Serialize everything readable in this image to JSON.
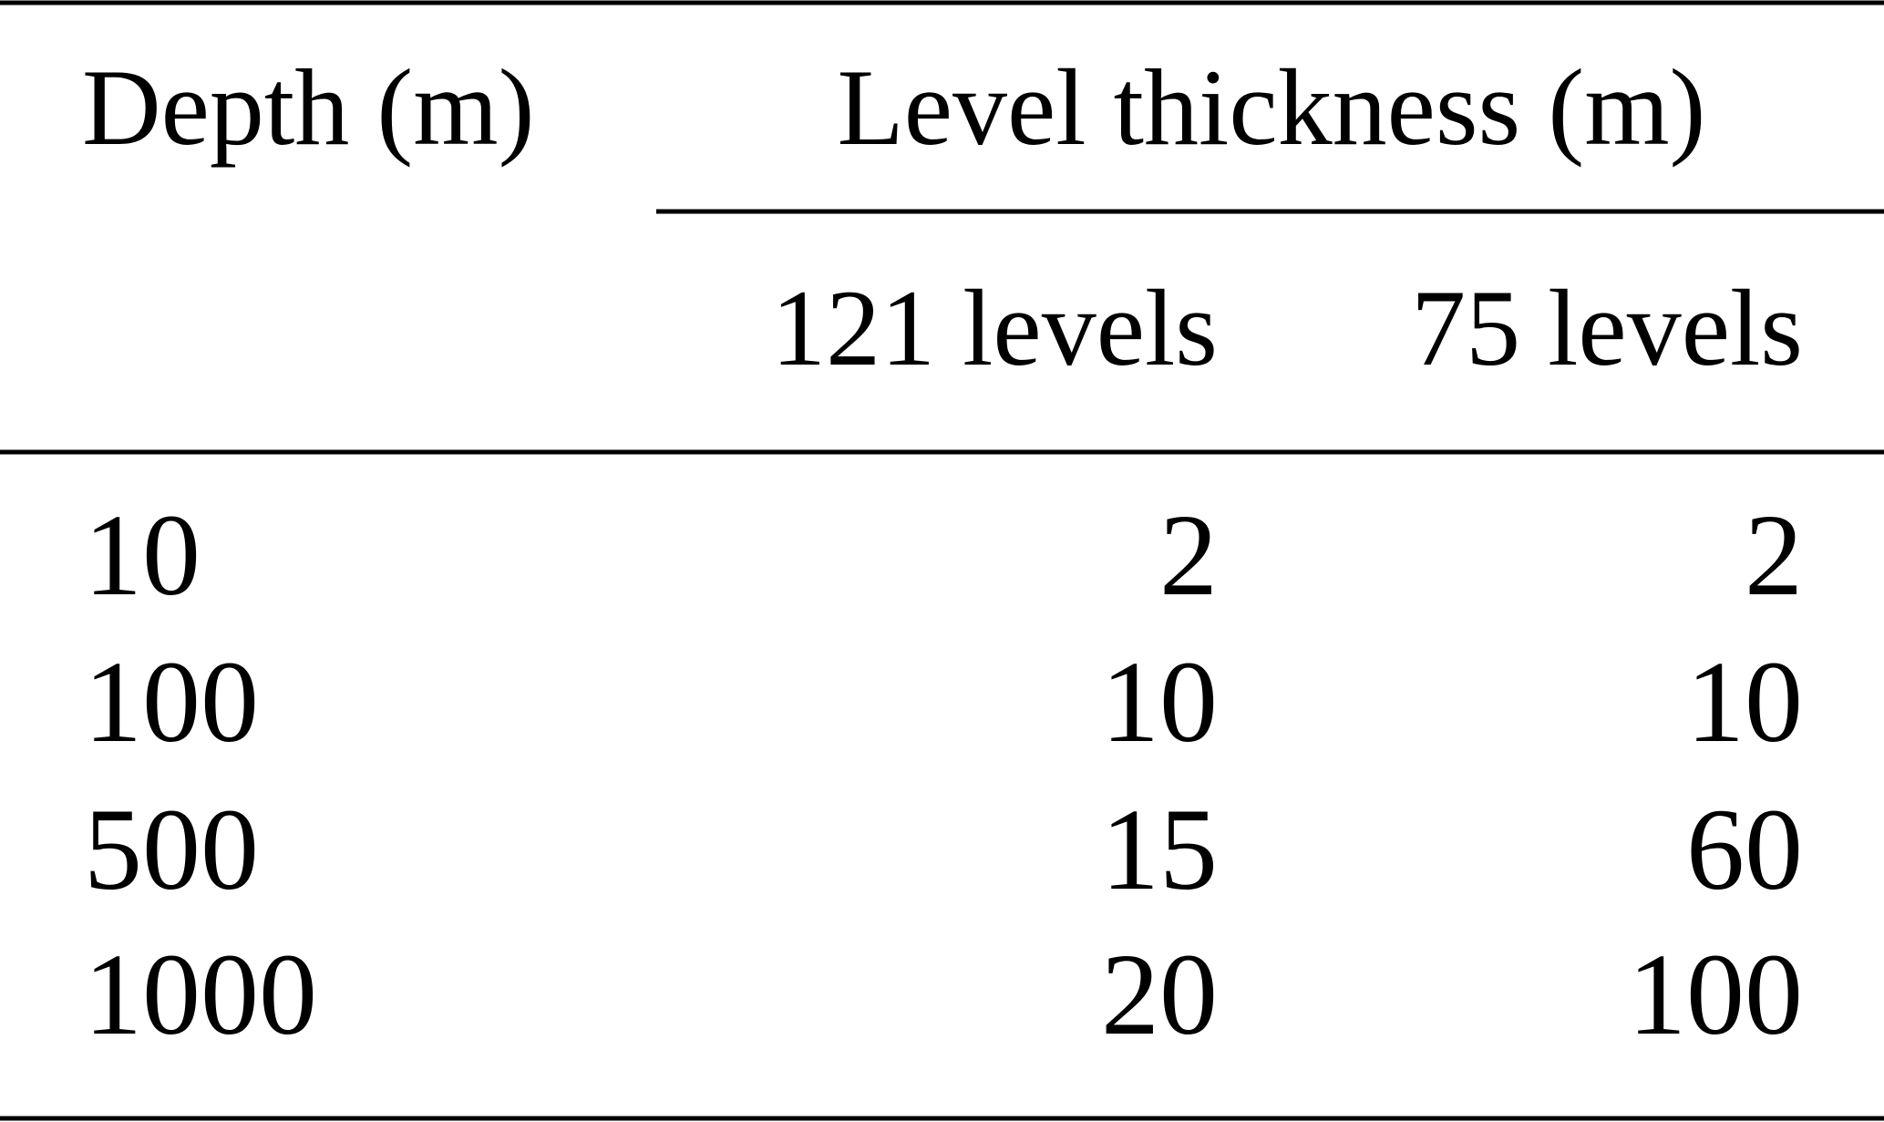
{
  "table": {
    "header": {
      "depth": "Depth (m)",
      "group": "Level thickness (m)",
      "columns": [
        "121 levels",
        "75 levels"
      ]
    },
    "rows": [
      [
        10,
        2,
        2
      ],
      [
        100,
        10,
        10
      ],
      [
        500,
        15,
        60
      ],
      [
        1000,
        20,
        100
      ]
    ]
  }
}
